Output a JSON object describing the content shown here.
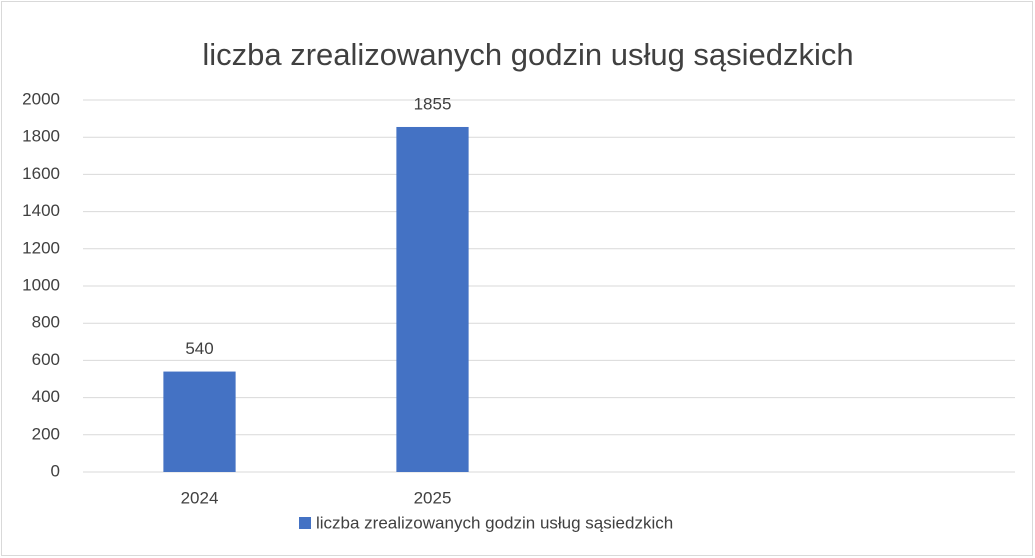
{
  "chart_data": {
    "type": "bar",
    "title": "liczba zrealizowanych godzin usług sąsiedzkich",
    "categories": [
      "2024",
      "2025",
      null,
      null
    ],
    "series": [
      {
        "name": "liczba zrealizowanych godzin usług sąsiedzkich",
        "color": "#4472c4",
        "values": [
          540,
          1855,
          null,
          null
        ]
      }
    ],
    "ylim": [
      0,
      2000
    ],
    "yticks": [
      0,
      200,
      400,
      600,
      800,
      1000,
      1200,
      1400,
      1600,
      1800,
      2000
    ],
    "grid": true,
    "legend": "bottom"
  }
}
